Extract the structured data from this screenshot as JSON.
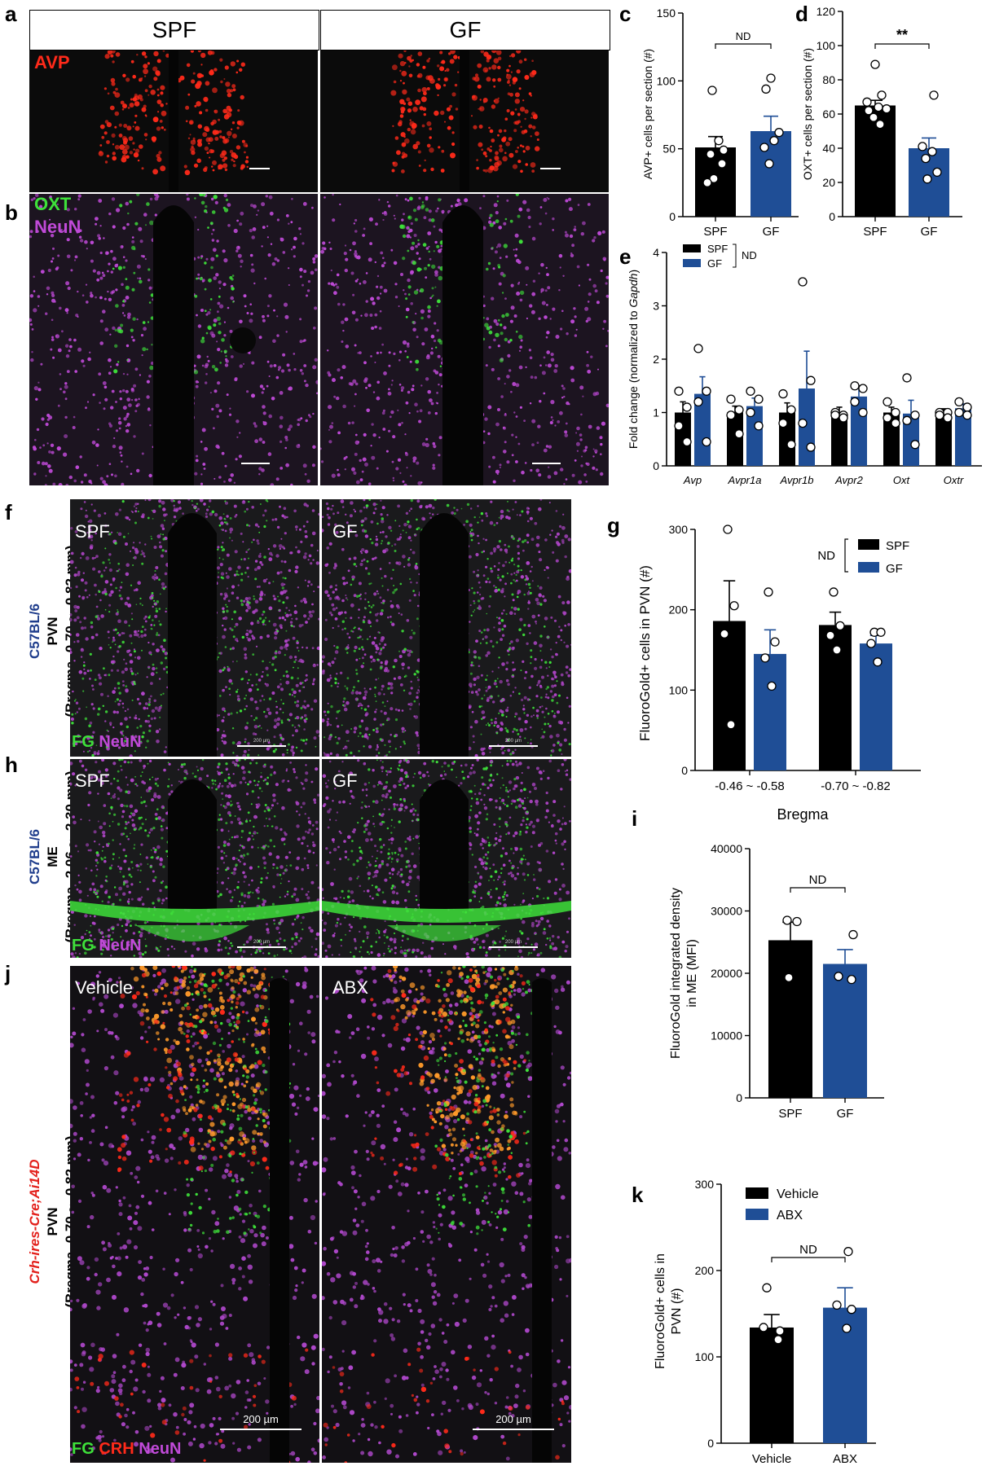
{
  "panels": {
    "a": {
      "letter": "a",
      "headers": [
        "SPF",
        "GF"
      ],
      "stain": "AVP",
      "colors": {
        "stain": "#ff2a1a"
      }
    },
    "b": {
      "letter": "b",
      "stains": [
        "OXT",
        "NeuN"
      ],
      "colors": {
        "oxt": "#3ee03a",
        "neun": "#c04ad8"
      }
    },
    "f": {
      "letter": "f",
      "groups": [
        "SPF",
        "GF"
      ],
      "stains": [
        "FG",
        "NeuN"
      ],
      "scale": "200 µm",
      "side": {
        "strain": "C57BL/6",
        "region": "PVN",
        "bregma": "(Bregma -0.70 ~ -0.82 mm)"
      }
    },
    "h": {
      "letter": "h",
      "groups": [
        "SPF",
        "GF"
      ],
      "stains": [
        "FG",
        "NeuN"
      ],
      "scale": "200 µm",
      "side": {
        "strain": "C57BL/6",
        "region": "ME",
        "bregma": "(Bregma -2.06 ~ -2.30 mm)"
      }
    },
    "j": {
      "letter": "j",
      "groups": [
        "Vehicle",
        "ABX"
      ],
      "stains": [
        "FG",
        "CRH",
        "NeuN"
      ],
      "scale": "200 µm",
      "side": {
        "strain": "Crh-ires-Cre;Ai14D",
        "region": "PVN",
        "bregma": "(Bregma -0.70 ~ -0.82 mm)"
      }
    }
  },
  "colors": {
    "black": "#000000",
    "blue": "#1f4e96",
    "green": "#3ee03a",
    "magenta": "#c04ad8",
    "red": "#ff2a1a",
    "strain_blue": "#1f3d8c",
    "strain_red": "#e3201b"
  },
  "chart_data": [
    {
      "panel": "c",
      "type": "bar",
      "categories": [
        "SPF",
        "GF"
      ],
      "values": [
        51,
        63
      ],
      "errors": [
        8,
        11
      ],
      "points": [
        [
          93,
          56,
          49,
          46,
          39,
          28,
          25
        ],
        [
          102,
          94,
          62,
          56,
          51,
          39
        ]
      ],
      "ylabel": "AVP+ cells per section (#)",
      "ylim": [
        0,
        150
      ],
      "yticks": [
        0,
        50,
        100,
        150
      ],
      "annotation": "ND"
    },
    {
      "panel": "d",
      "type": "bar",
      "categories": [
        "SPF",
        "GF"
      ],
      "values": [
        65,
        40
      ],
      "errors": [
        3,
        6
      ],
      "points": [
        [
          89,
          71,
          67,
          64,
          63,
          62,
          58,
          54
        ],
        [
          71,
          41,
          38,
          34,
          26,
          22
        ]
      ],
      "ylabel": "OXT+ cells per section (#)",
      "ylim": [
        0,
        120
      ],
      "yticks": [
        0,
        20,
        40,
        60,
        80,
        100,
        120
      ],
      "annotation": "**"
    },
    {
      "panel": "e",
      "type": "bar",
      "categories": [
        "Avp",
        "Avpr1a",
        "Avpr1b",
        "Avpr2",
        "Oxt",
        "Oxtr"
      ],
      "series": [
        {
          "name": "SPF",
          "values": [
            1.0,
            1.0,
            1.0,
            1.0,
            1.0,
            1.0
          ],
          "errors": [
            0.2,
            0.12,
            0.18,
            0.1,
            0.1,
            0.07
          ],
          "points": [
            [
              1.4,
              1.1,
              0.75,
              0.45
            ],
            [
              1.25,
              1.05,
              0.95,
              0.6
            ],
            [
              1.35,
              1.05,
              0.8,
              0.4
            ],
            [
              1.0,
              0.95,
              0.95,
              0.9
            ],
            [
              1.2,
              1.0,
              0.9,
              0.8
            ],
            [
              1.0,
              1.0,
              0.95,
              0.9
            ]
          ]
        },
        {
          "name": "GF",
          "values": [
            1.35,
            1.12,
            1.45,
            1.3,
            0.98,
            1.08
          ],
          "errors": [
            0.32,
            0.15,
            0.7,
            0.2,
            0.25,
            0.08
          ],
          "points": [
            [
              2.2,
              1.4,
              1.2,
              0.45
            ],
            [
              1.4,
              1.25,
              1.0,
              0.75
            ],
            [
              3.45,
              1.6,
              0.8,
              0.35
            ],
            [
              1.5,
              1.45,
              1.2,
              1.0
            ],
            [
              1.65,
              0.95,
              0.85,
              0.4
            ],
            [
              1.2,
              1.1,
              1.0,
              0.95
            ]
          ]
        }
      ],
      "ylabel": "Fold change (normalized to Gapdh)",
      "ylim": [
        0,
        4
      ],
      "yticks": [
        0,
        1,
        2,
        3,
        4
      ],
      "annotation": "ND"
    },
    {
      "panel": "g",
      "type": "bar",
      "categories": [
        "-0.46 ~ -0.58",
        "-0.70 ~ -0.82"
      ],
      "series": [
        {
          "name": "SPF",
          "values": [
            186,
            181
          ],
          "errors": [
            50,
            16
          ],
          "points": [
            [
              300,
              205,
              170,
              57
            ],
            [
              222,
              180,
              168,
              150
            ]
          ]
        },
        {
          "name": "GF",
          "values": [
            145,
            158
          ],
          "errors": [
            30,
            10
          ],
          "points": [
            [
              222,
              160,
              140,
              105
            ],
            [
              172,
              172,
              158,
              135
            ]
          ]
        }
      ],
      "ylabel": "FluoroGold+ cells in PVN (#)",
      "xlabel": "Bregma",
      "ylim": [
        0,
        300
      ],
      "yticks": [
        0,
        100,
        200,
        300
      ],
      "annotation": "ND"
    },
    {
      "panel": "i",
      "type": "bar",
      "categories": [
        "SPF",
        "GF"
      ],
      "values": [
        25300,
        21500
      ],
      "errors": [
        2900,
        2300
      ],
      "points": [
        [
          28500,
          28300,
          19300
        ],
        [
          26200,
          19500,
          19000
        ]
      ],
      "ylabel": "FluoroGold integrated density in ME (MFI)",
      "ylim": [
        0,
        40000
      ],
      "yticks": [
        0,
        10000,
        20000,
        30000,
        40000
      ],
      "annotation": "ND"
    },
    {
      "panel": "k",
      "type": "bar",
      "categories": [
        "Vehicle",
        "ABX"
      ],
      "values": [
        134,
        157
      ],
      "errors": [
        15,
        23
      ],
      "points": [
        [
          180,
          134,
          130,
          120
        ],
        [
          222,
          160,
          155,
          133
        ]
      ],
      "legend": [
        "Vehicle",
        "ABX"
      ],
      "ylabel": "FluoroGold+ cells in PVN (#)",
      "ylim": [
        0,
        300
      ],
      "yticks": [
        0,
        100,
        200,
        300
      ],
      "annotation": "ND"
    }
  ]
}
